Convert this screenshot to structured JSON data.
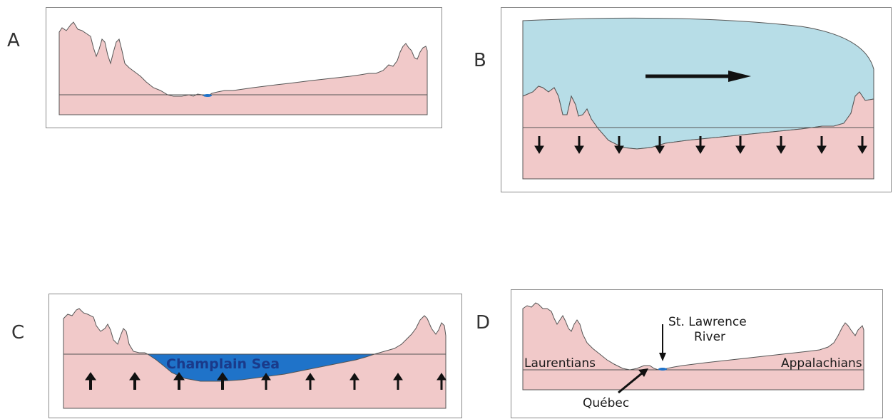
{
  "panels": {
    "a": {
      "letter": "A"
    },
    "b": {
      "letter": "B"
    },
    "c": {
      "letter": "C",
      "sea_label": "Champlain Sea"
    },
    "d": {
      "letter": "D",
      "river_line1": "St. Lawrence",
      "river_line2": "River",
      "left_label": "Laurentians",
      "right_label": "Appalachians",
      "city_label": "Québec"
    }
  },
  "colors": {
    "land": "#f1c9c9",
    "ice": "#b7dde7",
    "sea": "#1f73c9",
    "outline": "#555555",
    "arrow": "#111111"
  }
}
